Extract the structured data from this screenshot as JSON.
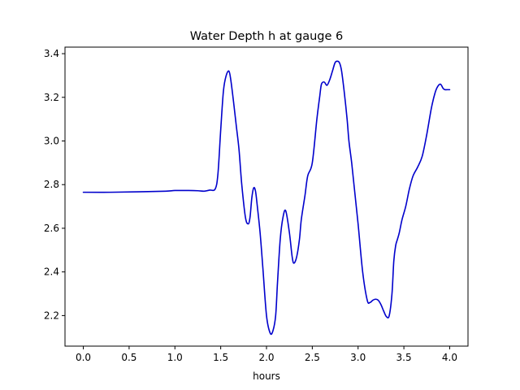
{
  "chart_data": {
    "type": "line",
    "title": "Water Depth h at gauge 6",
    "xlabel": "hours",
    "ylabel": "",
    "xlim": [
      -0.2,
      4.2
    ],
    "ylim": [
      2.06,
      3.43
    ],
    "xticks": [
      0.0,
      0.5,
      1.0,
      1.5,
      2.0,
      2.5,
      3.0,
      3.5,
      4.0
    ],
    "xtick_labels": [
      "0.0",
      "0.5",
      "1.0",
      "1.5",
      "2.0",
      "2.5",
      "3.0",
      "3.5",
      "4.0"
    ],
    "yticks": [
      2.2,
      2.4,
      2.6,
      2.8,
      3.0,
      3.2,
      3.4
    ],
    "ytick_labels": [
      "2.2",
      "2.4",
      "2.6",
      "2.8",
      "3.0",
      "3.2",
      "3.4"
    ],
    "grid": false,
    "series": [
      {
        "color": "#0000cc",
        "x": [
          0.0,
          0.3,
          0.6,
          0.9,
          1.0,
          1.15,
          1.25,
          1.32,
          1.38,
          1.44,
          1.47,
          1.5,
          1.53,
          1.56,
          1.59,
          1.61,
          1.64,
          1.67,
          1.7,
          1.73,
          1.77,
          1.8,
          1.82,
          1.84,
          1.86,
          1.88,
          1.9,
          1.93,
          1.96,
          2.0,
          2.04,
          2.07,
          2.1,
          2.12,
          2.15,
          2.18,
          2.21,
          2.25,
          2.28,
          2.3,
          2.33,
          2.36,
          2.38,
          2.42,
          2.45,
          2.5,
          2.55,
          2.58,
          2.6,
          2.63,
          2.66,
          2.69,
          2.72,
          2.75,
          2.78,
          2.8,
          2.82,
          2.85,
          2.88,
          2.9,
          2.93,
          2.96,
          3.0,
          3.05,
          3.1,
          3.13,
          3.16,
          3.19,
          3.22,
          3.25,
          3.28,
          3.31,
          3.34,
          3.37,
          3.39,
          3.41,
          3.43,
          3.45,
          3.48,
          3.52,
          3.56,
          3.6,
          3.65,
          3.7,
          3.75,
          3.8,
          3.84,
          3.87,
          3.9,
          3.93,
          3.95,
          3.97,
          4.0
        ],
        "y": [
          2.765,
          2.765,
          2.767,
          2.77,
          2.773,
          2.773,
          2.772,
          2.77,
          2.775,
          2.78,
          2.85,
          3.05,
          3.23,
          3.3,
          3.32,
          3.28,
          3.18,
          3.07,
          2.96,
          2.8,
          2.65,
          2.62,
          2.65,
          2.74,
          2.785,
          2.77,
          2.7,
          2.58,
          2.42,
          2.2,
          2.12,
          2.13,
          2.2,
          2.35,
          2.55,
          2.65,
          2.68,
          2.58,
          2.47,
          2.44,
          2.47,
          2.55,
          2.64,
          2.75,
          2.84,
          2.9,
          3.1,
          3.2,
          3.26,
          3.27,
          3.255,
          3.28,
          3.32,
          3.36,
          3.365,
          3.355,
          3.32,
          3.22,
          3.1,
          3.0,
          2.9,
          2.78,
          2.62,
          2.4,
          2.27,
          2.26,
          2.27,
          2.275,
          2.27,
          2.25,
          2.22,
          2.195,
          2.2,
          2.3,
          2.45,
          2.52,
          2.55,
          2.58,
          2.64,
          2.7,
          2.78,
          2.84,
          2.88,
          2.93,
          3.03,
          3.15,
          3.22,
          3.25,
          3.26,
          3.24,
          3.235,
          3.235,
          3.235
        ]
      }
    ]
  }
}
